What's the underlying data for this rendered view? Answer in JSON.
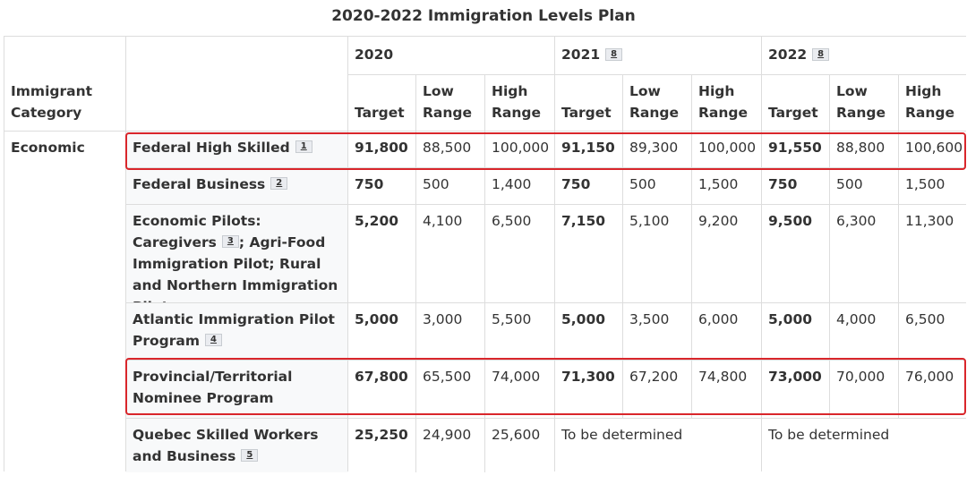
{
  "title": "2020-2022 Immigration Levels Plan",
  "header": {
    "category_label": "Immigrant Category",
    "years": [
      {
        "year": "2020",
        "note": ""
      },
      {
        "year": "2021",
        "note": "8"
      },
      {
        "year": "2022",
        "note": "8"
      }
    ],
    "sub_labels": [
      "Target",
      "Low Range",
      "High Range"
    ]
  },
  "category": "Economic",
  "rows": [
    {
      "program": "Federal High Skilled",
      "note": "1",
      "y2020": [
        "91,800",
        "88,500",
        "100,000"
      ],
      "y2021": [
        "91,150",
        "89,300",
        "100,000"
      ],
      "y2022": [
        "91,550",
        "88,800",
        "100,600"
      ],
      "highlighted": true
    },
    {
      "program": "Federal Business",
      "note": "2",
      "y2020": [
        "750",
        "500",
        "1,400"
      ],
      "y2021": [
        "750",
        "500",
        "1,500"
      ],
      "y2022": [
        "750",
        "500",
        "1,500"
      ],
      "highlighted": false
    },
    {
      "program_part1": "Economic Pilots: Caregivers",
      "note": "3",
      "program_part2": "; Agri-Food Immigration Pilot; Rural and Northern Immigration Pilot",
      "y2020": [
        "5,200",
        "4,100",
        "6,500"
      ],
      "y2021": [
        "7,150",
        "5,100",
        "9,200"
      ],
      "y2022": [
        "9,500",
        "6,300",
        "11,300"
      ],
      "highlighted": false
    },
    {
      "program": "Atlantic Immigration Pilot Program",
      "note": "4",
      "y2020": [
        "5,000",
        "3,000",
        "5,500"
      ],
      "y2021": [
        "5,000",
        "3,500",
        "6,000"
      ],
      "y2022": [
        "5,000",
        "4,000",
        "6,500"
      ],
      "highlighted": false
    },
    {
      "program": "Provincial/Territorial Nominee Program",
      "note": "",
      "y2020": [
        "67,800",
        "65,500",
        "74,000"
      ],
      "y2021": [
        "71,300",
        "67,200",
        "74,800"
      ],
      "y2022": [
        "73,000",
        "70,000",
        "76,000"
      ],
      "highlighted": true
    },
    {
      "program": "Quebec Skilled Workers and Business",
      "note": "5",
      "y2020": [
        "25,250",
        "24,900",
        "25,600"
      ],
      "y2021_text": "To be determined",
      "y2022_text": "To be determined",
      "highlighted": false
    }
  ],
  "colors": {
    "highlight_border": "#d9262b",
    "grid_line": "#dddddd",
    "note_bg": "#eaecf0"
  }
}
